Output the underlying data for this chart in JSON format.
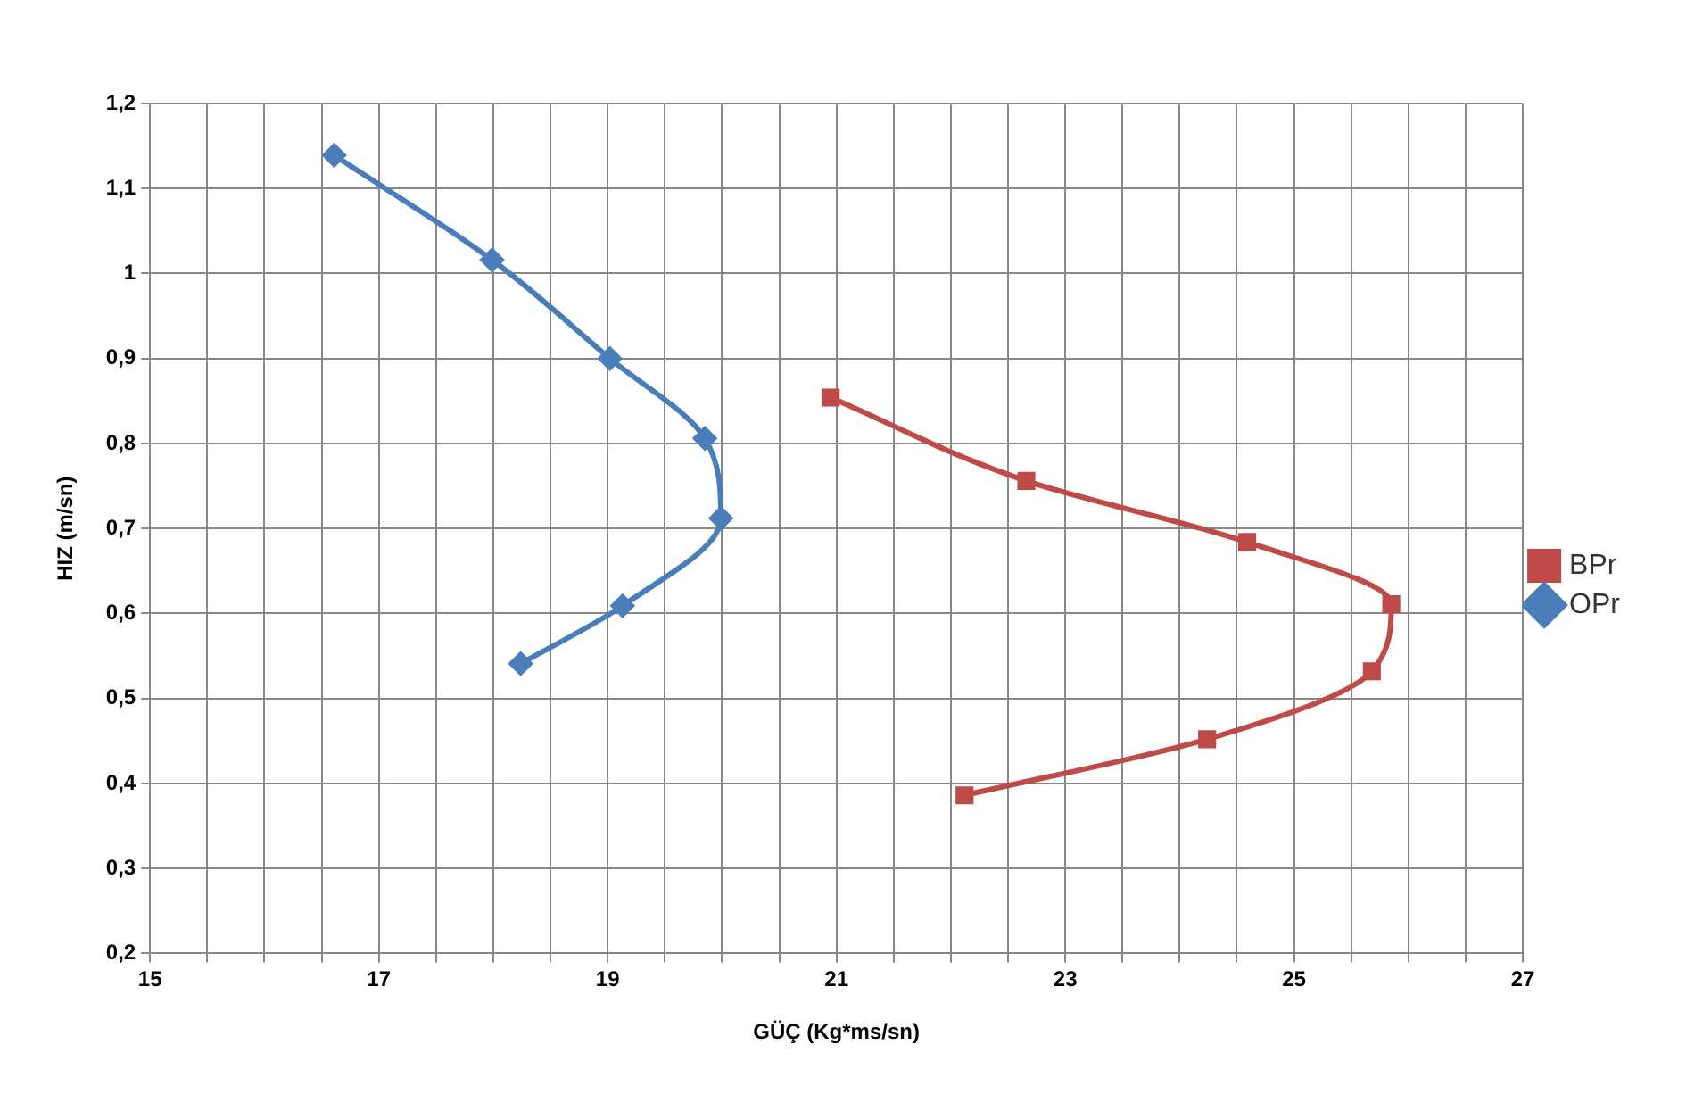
{
  "chart_data": {
    "type": "line",
    "xlabel": "GÜÇ (Kg*ms/sn)",
    "ylabel": "HIZ (m/sn)",
    "series": [
      {
        "name": "BPr",
        "color": "#be4b48",
        "marker": "square",
        "x": [
          20.95,
          22.66,
          24.59,
          25.85,
          25.68,
          24.24,
          22.12
        ],
        "values": [
          0.854,
          0.756,
          0.684,
          0.611,
          0.532,
          0.452,
          0.386
        ]
      },
      {
        "name": "OPr",
        "color": "#4a7ebb",
        "marker": "diamond",
        "x": [
          16.61,
          17.99,
          19.02,
          19.85,
          19.99,
          19.13,
          18.24
        ],
        "values": [
          1.139,
          1.016,
          0.9,
          0.806,
          0.712,
          0.609,
          0.541
        ]
      }
    ],
    "xlim": [
      15,
      27
    ],
    "xticks": [
      15,
      {
        "value": 15.5,
        "label": null
      },
      {
        "value": 16,
        "label": null
      },
      {
        "value": 16.5,
        "label": null
      },
      17,
      {
        "value": 17.5,
        "label": null
      },
      {
        "value": 18,
        "label": null
      },
      {
        "value": 18.5,
        "label": null
      },
      19,
      {
        "value": 19.5,
        "label": null
      },
      {
        "value": 20,
        "label": null
      },
      {
        "value": 20.5,
        "label": null
      },
      21,
      {
        "value": 21.5,
        "label": null
      },
      {
        "value": 22,
        "label": null
      },
      {
        "value": 22.5,
        "label": null
      },
      23,
      {
        "value": 23.5,
        "label": null
      },
      {
        "value": 24,
        "label": null
      },
      {
        "value": 24.5,
        "label": null
      },
      25,
      {
        "value": 25.5,
        "label": null
      },
      {
        "value": 26,
        "label": null
      },
      {
        "value": 26.5,
        "label": null
      },
      27
    ],
    "ylim": [
      0.2,
      1.2
    ],
    "yticks": [
      {
        "value": 0.2,
        "label": "0,2"
      },
      {
        "value": 0.3,
        "label": "0,3"
      },
      {
        "value": 0.4,
        "label": "0,4"
      },
      {
        "value": 0.5,
        "label": "0,5"
      },
      {
        "value": 0.6,
        "label": "0,6"
      },
      {
        "value": 0.7,
        "label": "0,7"
      },
      {
        "value": 0.8,
        "label": "0,8"
      },
      {
        "value": 0.9,
        "label": "0,9"
      },
      1,
      {
        "value": 1.1,
        "label": "1,1"
      },
      {
        "value": 1.2,
        "label": "1,2"
      }
    ],
    "grid": true,
    "legend": "right"
  }
}
